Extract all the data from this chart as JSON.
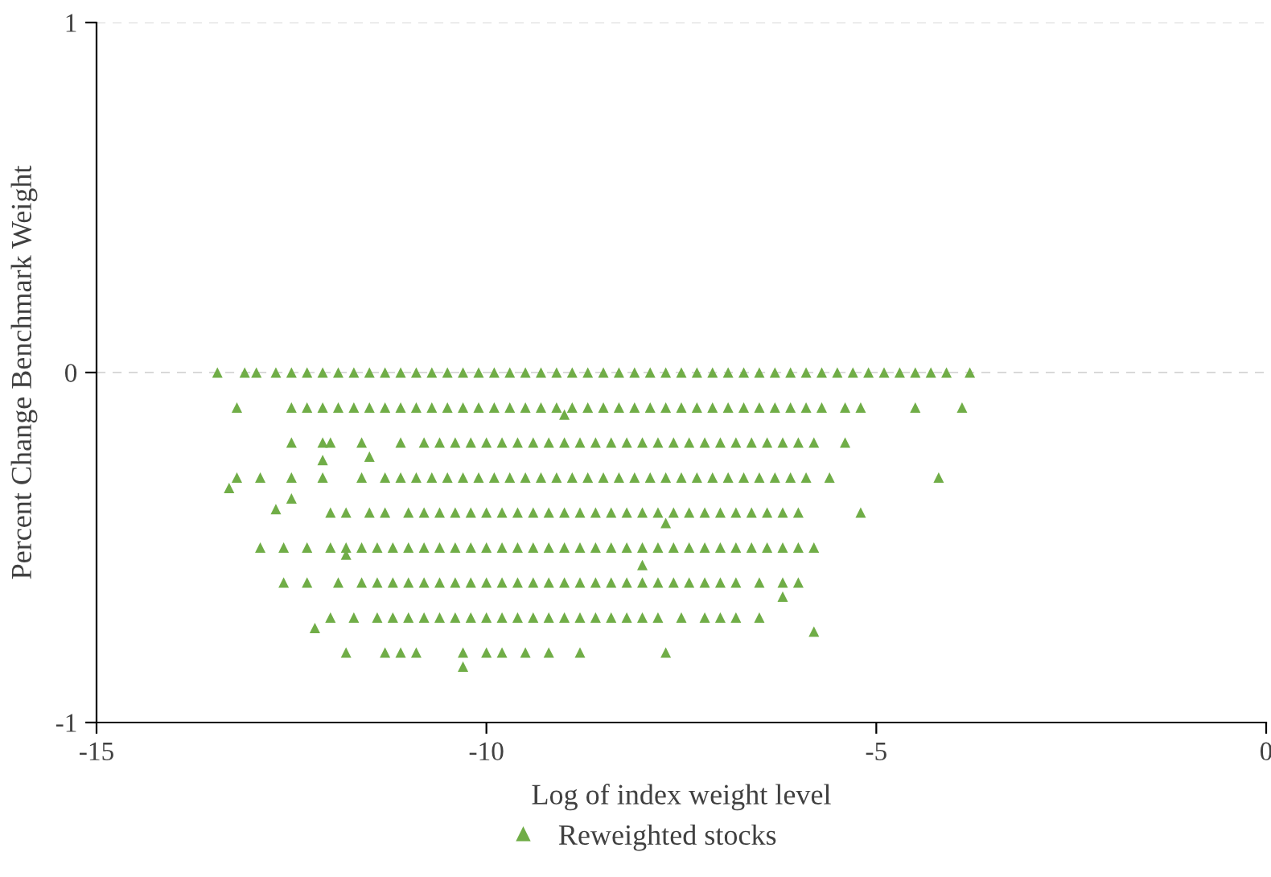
{
  "chart_data": {
    "type": "scatter",
    "xlabel": "Log of index weight level",
    "ylabel": "Percent Change Benchmark Weight",
    "xlim": [
      -15,
      0
    ],
    "xticks": [
      -15,
      -10,
      -5,
      0
    ],
    "ylim": [
      -1,
      1
    ],
    "yticks": [
      -1,
      0,
      1
    ],
    "grid": "y",
    "legend": "bottom",
    "marker": "triangle",
    "series": [
      {
        "name": "Reweighted stocks",
        "color": "#70ad47",
        "x": [
          -13.45,
          -13.1,
          -12.95,
          -12.7,
          -12.5,
          -12.3,
          -12.1,
          -11.9,
          -11.7,
          -11.5,
          -11.3,
          -11.1,
          -10.9,
          -10.7,
          -10.5,
          -10.3,
          -10.1,
          -9.9,
          -9.7,
          -9.5,
          -9.3,
          -9.1,
          -8.9,
          -8.7,
          -8.5,
          -8.3,
          -8.1,
          -7.9,
          -7.7,
          -7.5,
          -7.3,
          -7.1,
          -6.9,
          -6.7,
          -6.5,
          -6.3,
          -6.1,
          -5.9,
          -5.7,
          -5.5,
          -5.3,
          -5.1,
          -4.9,
          -4.7,
          -4.5,
          -4.3,
          -4.1,
          -3.8,
          -13.2,
          -12.5,
          -12.3,
          -12.1,
          -11.9,
          -11.7,
          -11.5,
          -11.3,
          -11.1,
          -10.9,
          -10.7,
          -10.5,
          -10.3,
          -10.1,
          -9.9,
          -9.7,
          -9.5,
          -9.3,
          -9.1,
          -8.9,
          -8.7,
          -8.5,
          -8.3,
          -8.1,
          -7.9,
          -7.7,
          -7.5,
          -7.3,
          -7.1,
          -6.9,
          -6.7,
          -6.5,
          -6.3,
          -6.1,
          -5.9,
          -5.7,
          -5.4,
          -5.2,
          -4.5,
          -3.9,
          -12.5,
          -12.1,
          -12.0,
          -11.6,
          -11.1,
          -10.8,
          -10.6,
          -10.4,
          -10.2,
          -10.0,
          -9.8,
          -9.6,
          -9.4,
          -9.2,
          -9.0,
          -8.8,
          -8.6,
          -8.4,
          -8.2,
          -8.0,
          -7.8,
          -7.6,
          -7.4,
          -7.2,
          -7.0,
          -6.8,
          -6.6,
          -6.4,
          -6.2,
          -6.0,
          -5.8,
          -5.4,
          -13.2,
          -12.9,
          -12.5,
          -12.1,
          -11.6,
          -11.3,
          -11.1,
          -10.9,
          -10.7,
          -10.5,
          -10.3,
          -10.1,
          -9.9,
          -9.7,
          -9.5,
          -9.3,
          -9.1,
          -8.9,
          -8.7,
          -8.5,
          -8.3,
          -8.1,
          -7.9,
          -7.7,
          -7.5,
          -7.3,
          -7.1,
          -6.9,
          -6.7,
          -6.5,
          -6.3,
          -6.1,
          -5.9,
          -5.6,
          -4.2,
          -12.0,
          -11.8,
          -11.5,
          -11.3,
          -11.0,
          -10.8,
          -10.6,
          -10.4,
          -10.2,
          -10.0,
          -9.8,
          -9.6,
          -9.4,
          -9.2,
          -9.0,
          -8.8,
          -8.6,
          -8.4,
          -8.2,
          -8.0,
          -7.8,
          -7.6,
          -7.4,
          -7.2,
          -7.0,
          -6.8,
          -6.6,
          -6.4,
          -6.2,
          -6.0,
          -5.2,
          -12.9,
          -12.6,
          -12.3,
          -12.0,
          -11.8,
          -11.6,
          -11.4,
          -11.2,
          -11.0,
          -10.8,
          -10.6,
          -10.4,
          -10.2,
          -10.0,
          -9.8,
          -9.6,
          -9.4,
          -9.2,
          -9.0,
          -8.8,
          -8.6,
          -8.4,
          -8.2,
          -8.0,
          -7.8,
          -7.6,
          -7.4,
          -7.2,
          -7.0,
          -6.8,
          -6.6,
          -6.4,
          -6.2,
          -6.0,
          -5.8,
          -12.6,
          -12.3,
          -11.9,
          -11.6,
          -11.4,
          -11.2,
          -11.0,
          -10.8,
          -10.6,
          -10.4,
          -10.2,
          -10.0,
          -9.8,
          -9.6,
          -9.4,
          -9.2,
          -9.0,
          -8.8,
          -8.6,
          -8.4,
          -8.2,
          -8.0,
          -7.8,
          -7.6,
          -7.4,
          -7.2,
          -7.0,
          -6.8,
          -6.5,
          -6.2,
          -6.0,
          -12.0,
          -11.7,
          -11.4,
          -11.2,
          -11.0,
          -10.8,
          -10.6,
          -10.4,
          -10.2,
          -10.0,
          -9.8,
          -9.6,
          -9.4,
          -9.2,
          -9.0,
          -8.8,
          -8.6,
          -8.4,
          -8.2,
          -8.0,
          -7.8,
          -7.5,
          -7.2,
          -7.0,
          -6.8,
          -6.5,
          -11.8,
          -11.3,
          -11.1,
          -10.9,
          -10.3,
          -10.0,
          -9.8,
          -9.5,
          -9.2,
          -8.8,
          -7.7,
          -12.2,
          -10.3,
          -5.8,
          -6.2,
          -13.3,
          -12.7,
          -12.1,
          -11.5,
          -8.0,
          -9.0,
          -7.7,
          -11.8,
          -12.5
        ],
        "values": [
          0,
          0,
          0,
          0,
          0,
          0,
          0,
          0,
          0,
          0,
          0,
          0,
          0,
          0,
          0,
          0,
          0,
          0,
          0,
          0,
          0,
          0,
          0,
          0,
          0,
          0,
          0,
          0,
          0,
          0,
          0,
          0,
          0,
          0,
          0,
          0,
          0,
          0,
          0,
          0,
          0,
          0,
          0,
          0,
          0,
          0,
          0,
          0,
          -0.1,
          -0.1,
          -0.1,
          -0.1,
          -0.1,
          -0.1,
          -0.1,
          -0.1,
          -0.1,
          -0.1,
          -0.1,
          -0.1,
          -0.1,
          -0.1,
          -0.1,
          -0.1,
          -0.1,
          -0.1,
          -0.1,
          -0.1,
          -0.1,
          -0.1,
          -0.1,
          -0.1,
          -0.1,
          -0.1,
          -0.1,
          -0.1,
          -0.1,
          -0.1,
          -0.1,
          -0.1,
          -0.1,
          -0.1,
          -0.1,
          -0.1,
          -0.1,
          -0.1,
          -0.1,
          -0.1,
          -0.2,
          -0.2,
          -0.2,
          -0.2,
          -0.2,
          -0.2,
          -0.2,
          -0.2,
          -0.2,
          -0.2,
          -0.2,
          -0.2,
          -0.2,
          -0.2,
          -0.2,
          -0.2,
          -0.2,
          -0.2,
          -0.2,
          -0.2,
          -0.2,
          -0.2,
          -0.2,
          -0.2,
          -0.2,
          -0.2,
          -0.2,
          -0.2,
          -0.2,
          -0.2,
          -0.2,
          -0.2,
          -0.3,
          -0.3,
          -0.3,
          -0.3,
          -0.3,
          -0.3,
          -0.3,
          -0.3,
          -0.3,
          -0.3,
          -0.3,
          -0.3,
          -0.3,
          -0.3,
          -0.3,
          -0.3,
          -0.3,
          -0.3,
          -0.3,
          -0.3,
          -0.3,
          -0.3,
          -0.3,
          -0.3,
          -0.3,
          -0.3,
          -0.3,
          -0.3,
          -0.3,
          -0.3,
          -0.3,
          -0.3,
          -0.3,
          -0.3,
          -0.3,
          -0.4,
          -0.4,
          -0.4,
          -0.4,
          -0.4,
          -0.4,
          -0.4,
          -0.4,
          -0.4,
          -0.4,
          -0.4,
          -0.4,
          -0.4,
          -0.4,
          -0.4,
          -0.4,
          -0.4,
          -0.4,
          -0.4,
          -0.4,
          -0.4,
          -0.4,
          -0.4,
          -0.4,
          -0.4,
          -0.4,
          -0.4,
          -0.4,
          -0.4,
          -0.4,
          -0.4,
          -0.5,
          -0.5,
          -0.5,
          -0.5,
          -0.5,
          -0.5,
          -0.5,
          -0.5,
          -0.5,
          -0.5,
          -0.5,
          -0.5,
          -0.5,
          -0.5,
          -0.5,
          -0.5,
          -0.5,
          -0.5,
          -0.5,
          -0.5,
          -0.5,
          -0.5,
          -0.5,
          -0.5,
          -0.5,
          -0.5,
          -0.5,
          -0.5,
          -0.5,
          -0.5,
          -0.5,
          -0.5,
          -0.5,
          -0.5,
          -0.5,
          -0.6,
          -0.6,
          -0.6,
          -0.6,
          -0.6,
          -0.6,
          -0.6,
          -0.6,
          -0.6,
          -0.6,
          -0.6,
          -0.6,
          -0.6,
          -0.6,
          -0.6,
          -0.6,
          -0.6,
          -0.6,
          -0.6,
          -0.6,
          -0.6,
          -0.6,
          -0.6,
          -0.6,
          -0.6,
          -0.6,
          -0.6,
          -0.6,
          -0.6,
          -0.6,
          -0.6,
          -0.7,
          -0.7,
          -0.7,
          -0.7,
          -0.7,
          -0.7,
          -0.7,
          -0.7,
          -0.7,
          -0.7,
          -0.7,
          -0.7,
          -0.7,
          -0.7,
          -0.7,
          -0.7,
          -0.7,
          -0.7,
          -0.7,
          -0.7,
          -0.7,
          -0.7,
          -0.7,
          -0.7,
          -0.7,
          -0.7,
          -0.8,
          -0.8,
          -0.8,
          -0.8,
          -0.8,
          -0.8,
          -0.8,
          -0.8,
          -0.8,
          -0.8,
          -0.8,
          -0.73,
          -0.84,
          -0.74,
          -0.64,
          -0.33,
          -0.39,
          -0.25,
          -0.24,
          -0.55,
          -0.12,
          -0.43,
          -0.52,
          -0.36
        ]
      }
    ]
  }
}
